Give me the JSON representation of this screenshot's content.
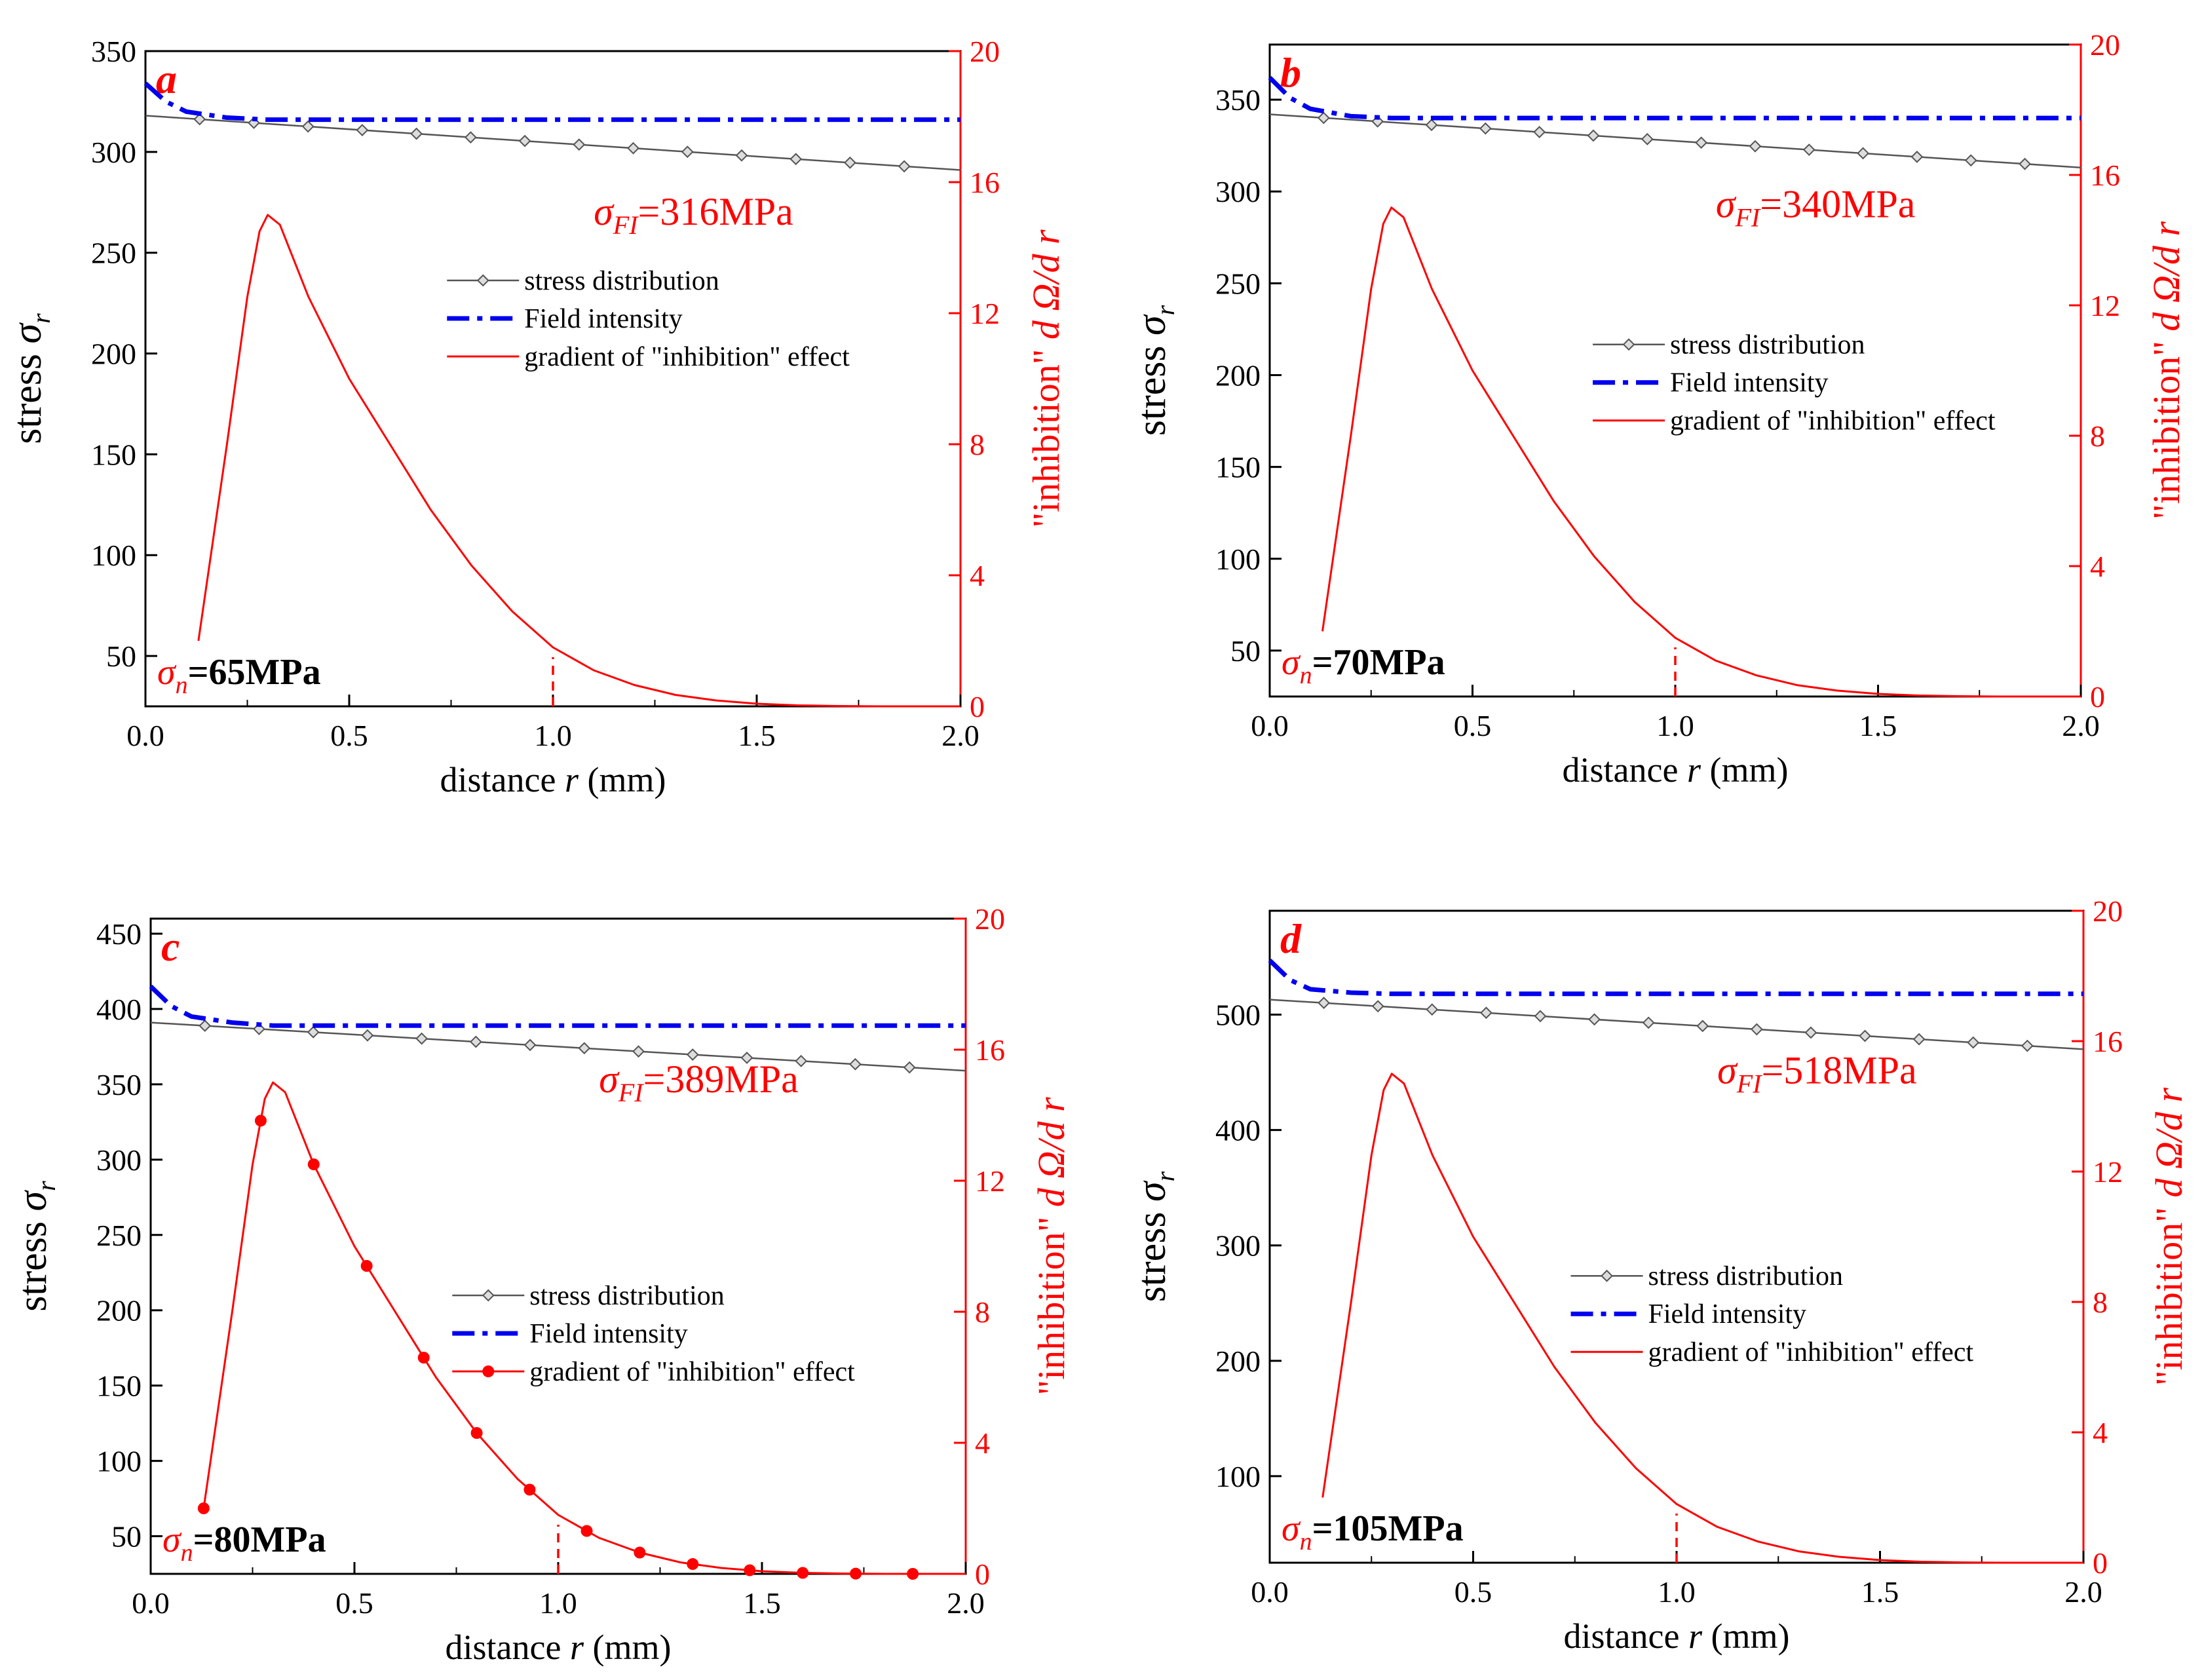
{
  "colors": {
    "axis": "#000000",
    "stress": "#555555",
    "field": "#0000ee",
    "inhibition": "#ff0000",
    "background": "#ffffff"
  },
  "chart_data": [
    {
      "type": "line",
      "panel_label": "a",
      "xlabel": {
        "pre": "distance ",
        "var": "r",
        "post": " (mm)"
      },
      "ylabel_left": {
        "pre": "stress ",
        "sym": "σ",
        "sub": "r"
      },
      "ylabel_right": {
        "pre": "\"inhibition\" ",
        "var": "d Ω/d r"
      },
      "xlim": [
        0,
        2.0
      ],
      "ylim_left": [
        25,
        350
      ],
      "ylim_right": [
        0,
        20
      ],
      "x_ticks": [
        "0.0",
        "0.5",
        "1.0",
        "1.5",
        "2.0"
      ],
      "y_ticks_left": [
        "50",
        "100",
        "150",
        "200",
        "250",
        "300",
        "350"
      ],
      "y_ticks_right": [
        "0",
        "4",
        "8",
        "12",
        "16",
        "20"
      ],
      "field_annotation": {
        "sym": "σ",
        "sub": "FI",
        "value": "=316MPa"
      },
      "normal_annotation": {
        "sym": "σ",
        "sub": "n",
        "value": "=65MPa"
      },
      "legend": [
        "stress distribution",
        "Field intensity",
        "gradient of \"inhibition\" effect"
      ],
      "series": [
        {
          "name": "stress distribution",
          "x": [
            0.0,
            2.0
          ],
          "y": [
            318,
            291
          ],
          "marker_step": 0.133
        },
        {
          "name": "Field intensity",
          "x": [
            0.0,
            0.05,
            0.1,
            0.2,
            0.3,
            0.5,
            0.8,
            1.2,
            1.6,
            2.0
          ],
          "y": [
            334,
            325,
            320,
            317,
            316,
            316,
            316,
            316,
            316,
            316
          ]
        },
        {
          "name": "gradient of \"inhibition\" effect",
          "x": [
            0.13,
            0.2,
            0.25,
            0.28,
            0.3,
            0.33,
            0.4,
            0.5,
            0.6,
            0.7,
            0.8,
            0.9,
            1.0,
            1.1,
            1.2,
            1.3,
            1.4,
            1.5,
            1.6,
            1.7,
            1.8,
            1.9,
            2.0
          ],
          "y": [
            2.0,
            8.0,
            12.5,
            14.5,
            15.0,
            14.7,
            12.5,
            10.0,
            8.0,
            6.0,
            4.3,
            2.9,
            1.8,
            1.1,
            0.65,
            0.35,
            0.18,
            0.08,
            0.03,
            0.01,
            0.0,
            0.0,
            0.0
          ]
        }
      ],
      "reference_x": 1.0
    },
    {
      "type": "line",
      "panel_label": "b",
      "xlabel": {
        "pre": "distance ",
        "var": "r",
        "post": " (mm)"
      },
      "ylabel_left": {
        "pre": "stress ",
        "sym": "σ",
        "sub": "r"
      },
      "ylabel_right": {
        "pre": "\"inhibition\" ",
        "var": "d Ω/d r"
      },
      "xlim": [
        0,
        2.0
      ],
      "ylim_left": [
        25,
        380
      ],
      "ylim_right": [
        0,
        20
      ],
      "x_ticks": [
        "0.0",
        "0.5",
        "1.0",
        "1.5",
        "2.0"
      ],
      "y_ticks_left": [
        "50",
        "100",
        "150",
        "200",
        "250",
        "300",
        "350"
      ],
      "y_ticks_right": [
        "0",
        "4",
        "8",
        "12",
        "16",
        "20"
      ],
      "field_annotation": {
        "sym": "σ",
        "sub": "FI",
        "value": "=340MPa"
      },
      "normal_annotation": {
        "sym": "σ",
        "sub": "n",
        "value": "=70MPa"
      },
      "legend": [
        "stress distribution",
        "Field intensity",
        "gradient of \"inhibition\" effect"
      ],
      "series": [
        {
          "name": "stress distribution",
          "x": [
            0.0,
            2.0
          ],
          "y": [
            342,
            313
          ],
          "marker_step": 0.133
        },
        {
          "name": "Field intensity",
          "x": [
            0.0,
            0.05,
            0.1,
            0.2,
            0.3,
            0.5,
            0.8,
            1.2,
            1.6,
            2.0
          ],
          "y": [
            362,
            351,
            345,
            341,
            340,
            340,
            340,
            340,
            340,
            340
          ]
        },
        {
          "name": "gradient of \"inhibition\" effect",
          "x": [
            0.13,
            0.2,
            0.25,
            0.28,
            0.3,
            0.33,
            0.4,
            0.5,
            0.6,
            0.7,
            0.8,
            0.9,
            1.0,
            1.1,
            1.2,
            1.3,
            1.4,
            1.5,
            1.6,
            1.7,
            1.8,
            1.9,
            2.0
          ],
          "y": [
            2.0,
            8.0,
            12.5,
            14.5,
            15.0,
            14.7,
            12.5,
            10.0,
            8.0,
            6.0,
            4.3,
            2.9,
            1.8,
            1.1,
            0.65,
            0.35,
            0.18,
            0.08,
            0.03,
            0.01,
            0.0,
            0.0,
            0.0
          ]
        }
      ],
      "reference_x": 1.0
    },
    {
      "type": "line",
      "panel_label": "c",
      "xlabel": {
        "pre": "distance ",
        "var": "r",
        "post": " (mm)"
      },
      "ylabel_left": {
        "pre": "stress ",
        "sym": "σ",
        "sub": "r"
      },
      "ylabel_right": {
        "pre": "\"inhibition\" ",
        "var": "d Ω/d r"
      },
      "xlim": [
        0,
        2.0
      ],
      "ylim_left": [
        25,
        460
      ],
      "ylim_right": [
        0,
        20
      ],
      "x_ticks": [
        "0.0",
        "0.5",
        "1.0",
        "1.5",
        "2.0"
      ],
      "y_ticks_left": [
        "50",
        "100",
        "150",
        "200",
        "250",
        "300",
        "350",
        "400",
        "450"
      ],
      "y_ticks_right": [
        "0",
        "4",
        "8",
        "12",
        "16",
        "20"
      ],
      "field_annotation": {
        "sym": "σ",
        "sub": "FI",
        "value": "=389MPa"
      },
      "normal_annotation": {
        "sym": "σ",
        "sub": "n",
        "value": "=80MPa"
      },
      "legend": [
        "stress distribution",
        "Field intensity",
        "gradient of \"inhibition\" effect"
      ],
      "series": [
        {
          "name": "stress distribution",
          "x": [
            0.0,
            2.0
          ],
          "y": [
            391,
            359
          ],
          "marker_step": 0.133
        },
        {
          "name": "Field intensity",
          "x": [
            0.0,
            0.05,
            0.1,
            0.2,
            0.3,
            0.5,
            0.8,
            1.2,
            1.6,
            2.0
          ],
          "y": [
            415,
            402,
            395,
            391,
            389,
            389,
            389,
            389,
            389,
            389
          ]
        },
        {
          "name": "gradient of \"inhibition\" effect",
          "x": [
            0.13,
            0.2,
            0.25,
            0.28,
            0.3,
            0.33,
            0.4,
            0.5,
            0.6,
            0.7,
            0.8,
            0.9,
            1.0,
            1.1,
            1.2,
            1.3,
            1.4,
            1.5,
            1.6,
            1.7,
            1.8,
            1.9,
            2.0
          ],
          "y": [
            2.0,
            8.0,
            12.5,
            14.5,
            15.0,
            14.7,
            12.5,
            10.0,
            8.0,
            6.0,
            4.3,
            2.9,
            1.8,
            1.1,
            0.65,
            0.35,
            0.18,
            0.08,
            0.03,
            0.01,
            0.0,
            0.0,
            0.0
          ],
          "markers_x": [
            0.13,
            0.27,
            0.4,
            0.53,
            0.67,
            0.8,
            0.93,
            1.07,
            1.2,
            1.33,
            1.47,
            1.6,
            1.73,
            1.87
          ]
        }
      ],
      "reference_x": 1.0
    },
    {
      "type": "line",
      "panel_label": "d",
      "xlabel": {
        "pre": "distance ",
        "var": "r",
        "post": " (mm)"
      },
      "ylabel_left": {
        "pre": "stress ",
        "sym": "σ",
        "sub": "r"
      },
      "ylabel_right": {
        "pre": "\"inhibition\" ",
        "var": "d Ω/d r"
      },
      "xlim": [
        0,
        2.0
      ],
      "ylim_left": [
        25,
        590
      ],
      "ylim_right": [
        0,
        20
      ],
      "x_ticks": [
        "0.0",
        "0.5",
        "1.0",
        "1.5",
        "2.0"
      ],
      "y_ticks_left": [
        "100",
        "200",
        "300",
        "400",
        "500"
      ],
      "y_ticks_right": [
        "0",
        "4",
        "8",
        "12",
        "16",
        "20"
      ],
      "field_annotation": {
        "sym": "σ",
        "sub": "FI",
        "value": "=518MPa"
      },
      "normal_annotation": {
        "sym": "σ",
        "sub": "n",
        "value": "=105MPa"
      },
      "legend": [
        "stress distribution",
        "Field intensity",
        "gradient of \"inhibition\" effect"
      ],
      "series": [
        {
          "name": "stress distribution",
          "x": [
            0.0,
            2.0
          ],
          "y": [
            513,
            470
          ],
          "marker_step": 0.133
        },
        {
          "name": "Field intensity",
          "x": [
            0.0,
            0.05,
            0.1,
            0.2,
            0.3,
            0.5,
            0.8,
            1.2,
            1.6,
            2.0
          ],
          "y": [
            547,
            530,
            522,
            519,
            518,
            518,
            518,
            518,
            518,
            518
          ]
        },
        {
          "name": "gradient of \"inhibition\" effect",
          "x": [
            0.13,
            0.2,
            0.25,
            0.28,
            0.3,
            0.33,
            0.4,
            0.5,
            0.6,
            0.7,
            0.8,
            0.9,
            1.0,
            1.1,
            1.2,
            1.3,
            1.4,
            1.5,
            1.6,
            1.7,
            1.8,
            1.9,
            2.0
          ],
          "y": [
            2.0,
            8.0,
            12.5,
            14.5,
            15.0,
            14.7,
            12.5,
            10.0,
            8.0,
            6.0,
            4.3,
            2.9,
            1.8,
            1.1,
            0.65,
            0.35,
            0.18,
            0.08,
            0.03,
            0.01,
            0.0,
            0.0,
            0.0
          ]
        }
      ],
      "reference_x": 1.0
    }
  ]
}
